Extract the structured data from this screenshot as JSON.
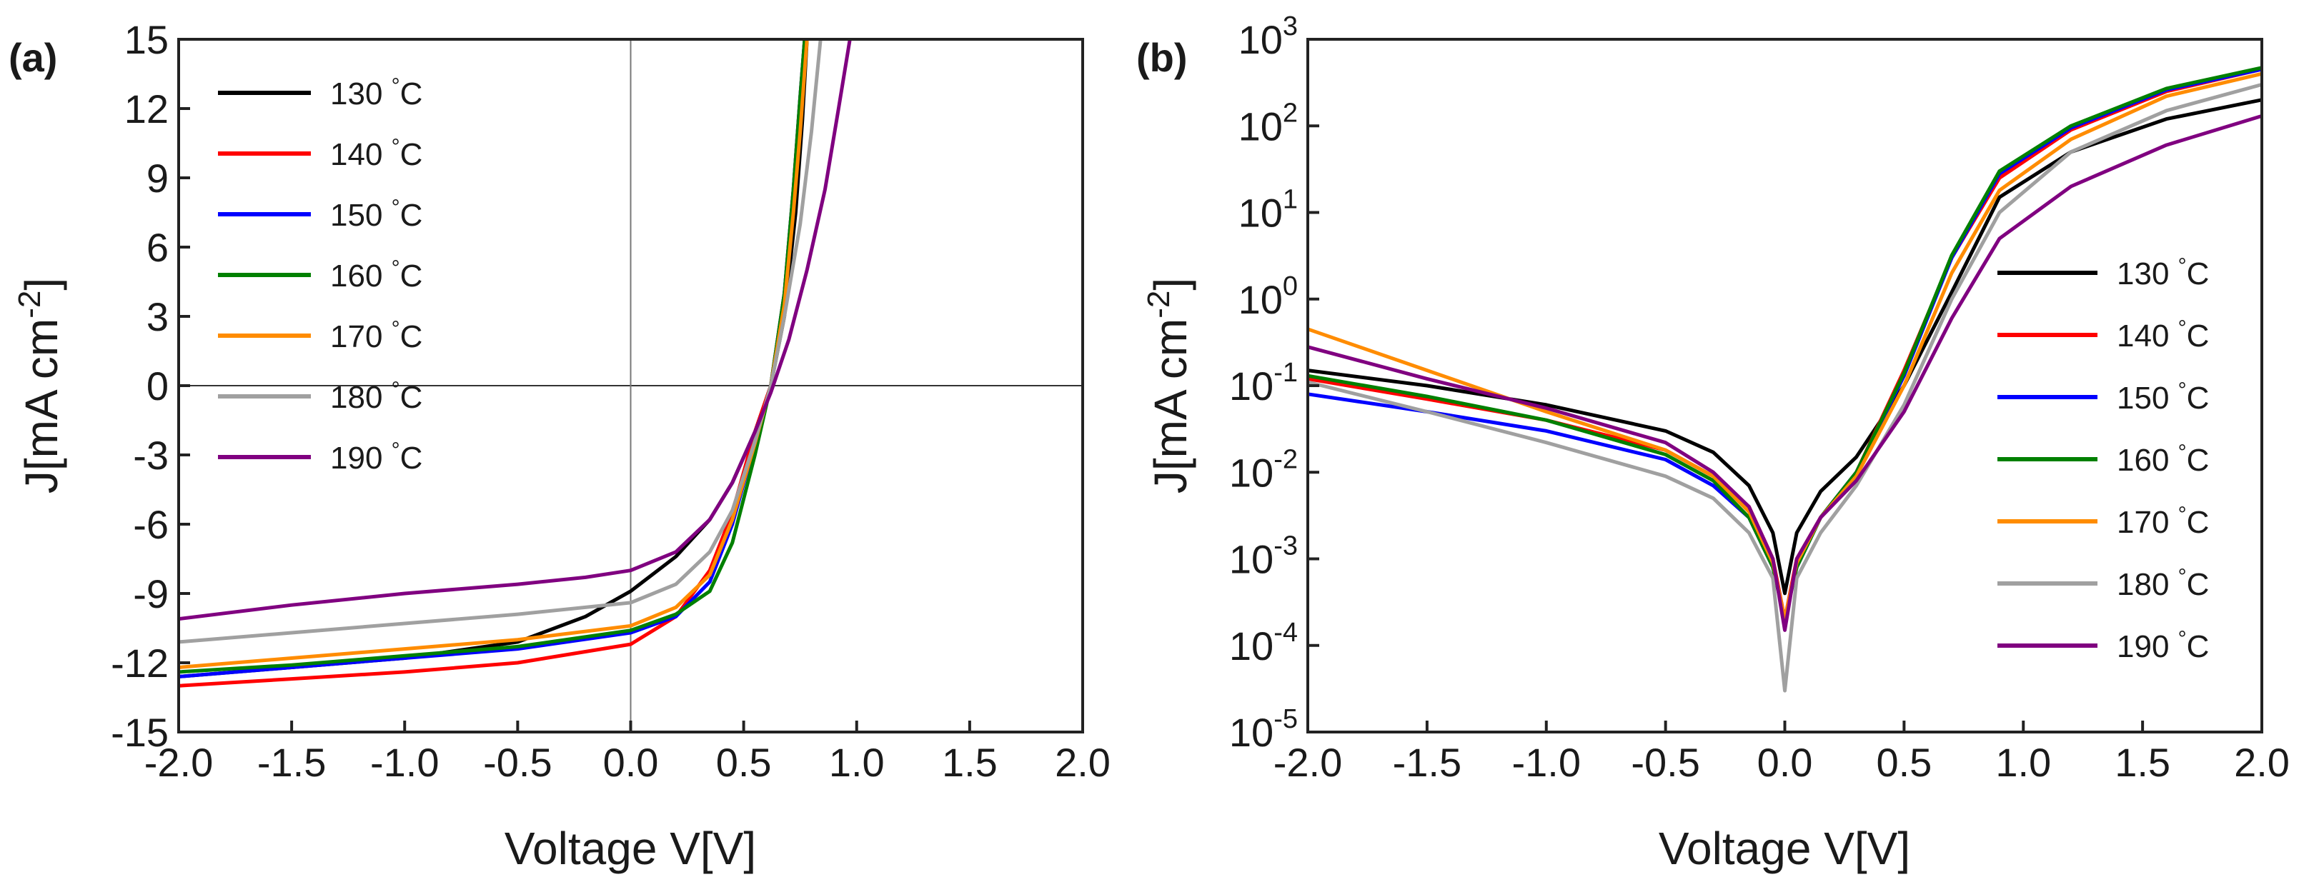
{
  "chart_data": [
    {
      "panel": "(a)",
      "type": "line",
      "xlabel": "Voltage V[V]",
      "ylabel": "J[mA cm",
      "ylabel_sup": "-2",
      "ylabel_close": "]",
      "xlim": [
        -2.0,
        2.0
      ],
      "ylim": [
        -15,
        15
      ],
      "xticks": [
        "-2.0",
        "-1.5",
        "-1.0",
        "-0.5",
        "0.0",
        "0.5",
        "1.0",
        "1.5",
        "2.0"
      ],
      "yticks": [
        "-15",
        "-12",
        "-9",
        "-6",
        "-3",
        "0",
        "3",
        "6",
        "9",
        "12",
        "15"
      ],
      "legend_position": "top-left",
      "series": [
        {
          "name": "130",
          "unit": "°C",
          "color": "#000000",
          "x": [
            -2.0,
            -1.5,
            -1.0,
            -0.5,
            -0.2,
            0.0,
            0.2,
            0.35,
            0.45,
            0.55,
            0.62,
            0.68,
            0.73,
            0.76,
            0.78
          ],
          "y": [
            -12.6,
            -12.2,
            -11.8,
            -11.1,
            -10.0,
            -8.9,
            -7.4,
            -5.8,
            -4.2,
            -2.0,
            0.0,
            3.0,
            7.5,
            11.5,
            15.0
          ]
        },
        {
          "name": "140",
          "unit": "°C",
          "color": "#ff0000",
          "x": [
            -2.0,
            -1.5,
            -1.0,
            -0.5,
            0.0,
            0.2,
            0.35,
            0.45,
            0.55,
            0.62,
            0.68,
            0.72,
            0.75,
            0.77
          ],
          "y": [
            -13.0,
            -12.7,
            -12.4,
            -12.0,
            -11.2,
            -10.0,
            -8.0,
            -5.5,
            -2.0,
            0.0,
            4.0,
            8.5,
            12.5,
            15.0
          ]
        },
        {
          "name": "150",
          "unit": "°C",
          "color": "#0000ff",
          "x": [
            -2.0,
            -1.5,
            -1.0,
            -0.5,
            0.0,
            0.2,
            0.35,
            0.45,
            0.55,
            0.62,
            0.68,
            0.72,
            0.75,
            0.77
          ],
          "y": [
            -12.6,
            -12.2,
            -11.8,
            -11.4,
            -10.7,
            -10.0,
            -8.5,
            -6.0,
            -2.5,
            0.0,
            4.0,
            8.5,
            12.5,
            15.0
          ]
        },
        {
          "name": "160",
          "unit": "°C",
          "color": "#008000",
          "x": [
            -2.0,
            -1.5,
            -1.0,
            -0.5,
            0.0,
            0.2,
            0.35,
            0.45,
            0.55,
            0.62,
            0.68,
            0.72,
            0.75,
            0.77
          ],
          "y": [
            -12.4,
            -12.1,
            -11.7,
            -11.3,
            -10.6,
            -9.9,
            -8.9,
            -6.8,
            -3.0,
            0.0,
            4.0,
            8.5,
            12.5,
            15.0
          ]
        },
        {
          "name": "170",
          "unit": "°C",
          "color": "#ff8c00",
          "x": [
            -2.0,
            -1.5,
            -1.0,
            -0.5,
            0.0,
            0.2,
            0.35,
            0.45,
            0.55,
            0.62,
            0.68,
            0.72,
            0.75,
            0.78
          ],
          "y": [
            -12.2,
            -11.8,
            -11.4,
            -11.0,
            -10.4,
            -9.6,
            -8.2,
            -5.8,
            -2.5,
            0.0,
            3.5,
            7.5,
            11.0,
            15.0
          ]
        },
        {
          "name": "180",
          "unit": "°C",
          "color": "#a0a0a0",
          "x": [
            -2.0,
            -1.5,
            -1.0,
            -0.5,
            0.0,
            0.2,
            0.35,
            0.45,
            0.55,
            0.62,
            0.68,
            0.75,
            0.8,
            0.84
          ],
          "y": [
            -11.1,
            -10.7,
            -10.3,
            -9.9,
            -9.4,
            -8.6,
            -7.2,
            -5.4,
            -2.4,
            0.0,
            3.0,
            7.0,
            11.0,
            15.0
          ]
        },
        {
          "name": "190",
          "unit": "°C",
          "color": "#800080",
          "x": [
            -2.0,
            -1.5,
            -1.0,
            -0.5,
            -0.2,
            0.0,
            0.2,
            0.35,
            0.45,
            0.55,
            0.62,
            0.7,
            0.78,
            0.86,
            0.92,
            0.97
          ],
          "y": [
            -10.1,
            -9.5,
            -9.0,
            -8.6,
            -8.3,
            -8.0,
            -7.2,
            -5.8,
            -4.2,
            -2.0,
            -0.3,
            2.0,
            5.0,
            8.5,
            12.0,
            15.0
          ]
        }
      ]
    },
    {
      "panel": "(b)",
      "type": "line",
      "yscale": "log",
      "xlabel": "Voltage V[V]",
      "ylabel": "J[mA cm",
      "ylabel_sup": "-2",
      "ylabel_close": "]",
      "xlim": [
        -2.0,
        2.0
      ],
      "ylim": [
        1e-05,
        1000
      ],
      "xticks": [
        "-2.0",
        "-1.5",
        "-1.0",
        "-0.5",
        "0.0",
        "0.5",
        "1.0",
        "1.5",
        "2.0"
      ],
      "yticks": [
        {
          "base": "10",
          "exp": "-5"
        },
        {
          "base": "10",
          "exp": "-4"
        },
        {
          "base": "10",
          "exp": "-3"
        },
        {
          "base": "10",
          "exp": "-2"
        },
        {
          "base": "10",
          "exp": "-1"
        },
        {
          "base": "10",
          "exp": "0"
        },
        {
          "base": "10",
          "exp": "1"
        },
        {
          "base": "10",
          "exp": "2"
        },
        {
          "base": "10",
          "exp": "3"
        }
      ],
      "legend_position": "right",
      "series": [
        {
          "name": "130",
          "unit": "°C",
          "color": "#000000",
          "x": [
            -2.0,
            -1.5,
            -1.0,
            -0.5,
            -0.3,
            -0.15,
            -0.05,
            0.0,
            0.05,
            0.15,
            0.3,
            0.5,
            0.7,
            0.9,
            1.2,
            1.6,
            2.0
          ],
          "y": [
            0.15,
            0.1,
            0.06,
            0.03,
            0.017,
            0.007,
            0.002,
            0.0004,
            0.002,
            0.006,
            0.015,
            0.1,
            1.2,
            15,
            50,
            120,
            200
          ]
        },
        {
          "name": "140",
          "unit": "°C",
          "color": "#ff0000",
          "x": [
            -2.0,
            -1.5,
            -1.0,
            -0.5,
            -0.3,
            -0.15,
            -0.05,
            0.0,
            0.05,
            0.15,
            0.3,
            0.5,
            0.7,
            0.9,
            1.2,
            1.6,
            2.0
          ],
          "y": [
            0.12,
            0.07,
            0.04,
            0.018,
            0.009,
            0.004,
            0.001,
            0.0002,
            0.001,
            0.003,
            0.01,
            0.15,
            3,
            25,
            90,
            250,
            450
          ]
        },
        {
          "name": "150",
          "unit": "°C",
          "color": "#0000ff",
          "x": [
            -2.0,
            -1.5,
            -1.0,
            -0.5,
            -0.3,
            -0.15,
            -0.05,
            0.0,
            0.05,
            0.15,
            0.3,
            0.5,
            0.7,
            0.9,
            1.2,
            1.6,
            2.0
          ],
          "y": [
            0.08,
            0.05,
            0.03,
            0.014,
            0.007,
            0.003,
            0.0008,
            0.0002,
            0.0008,
            0.003,
            0.01,
            0.13,
            3,
            28,
            95,
            260,
            450
          ]
        },
        {
          "name": "160",
          "unit": "°C",
          "color": "#008000",
          "x": [
            -2.0,
            -1.5,
            -1.0,
            -0.5,
            -0.3,
            -0.15,
            -0.05,
            0.0,
            0.05,
            0.15,
            0.3,
            0.5,
            0.7,
            0.9,
            1.2,
            1.6,
            2.0
          ],
          "y": [
            0.13,
            0.075,
            0.04,
            0.016,
            0.008,
            0.003,
            0.0008,
            0.0002,
            0.0008,
            0.003,
            0.01,
            0.14,
            3.2,
            30,
            100,
            270,
            470
          ]
        },
        {
          "name": "170",
          "unit": "°C",
          "color": "#ff8c00",
          "x": [
            -2.0,
            -1.5,
            -1.0,
            -0.5,
            -0.3,
            -0.15,
            -0.05,
            0.0,
            0.05,
            0.15,
            0.3,
            0.5,
            0.7,
            0.9,
            1.2,
            1.6,
            2.0
          ],
          "y": [
            0.45,
            0.15,
            0.05,
            0.018,
            0.009,
            0.0035,
            0.0009,
            0.0002,
            0.0009,
            0.003,
            0.009,
            0.1,
            2,
            18,
            70,
            220,
            400
          ]
        },
        {
          "name": "180",
          "unit": "°C",
          "color": "#a0a0a0",
          "x": [
            -2.0,
            -1.5,
            -1.0,
            -0.5,
            -0.3,
            -0.15,
            -0.05,
            0.0,
            0.05,
            0.15,
            0.3,
            0.5,
            0.7,
            0.9,
            1.2,
            1.6,
            2.0
          ],
          "y": [
            0.11,
            0.05,
            0.022,
            0.009,
            0.005,
            0.002,
            0.0006,
            3e-05,
            0.0006,
            0.002,
            0.007,
            0.06,
            1,
            10,
            50,
            150,
            300
          ]
        },
        {
          "name": "190",
          "unit": "°C",
          "color": "#800080",
          "x": [
            -2.0,
            -1.5,
            -1.0,
            -0.5,
            -0.3,
            -0.15,
            -0.05,
            0.0,
            0.05,
            0.15,
            0.3,
            0.5,
            0.7,
            0.9,
            1.2,
            1.6,
            2.0
          ],
          "y": [
            0.28,
            0.12,
            0.055,
            0.022,
            0.01,
            0.004,
            0.001,
            0.00015,
            0.001,
            0.003,
            0.008,
            0.05,
            0.6,
            5,
            20,
            60,
            130
          ]
        }
      ]
    }
  ]
}
